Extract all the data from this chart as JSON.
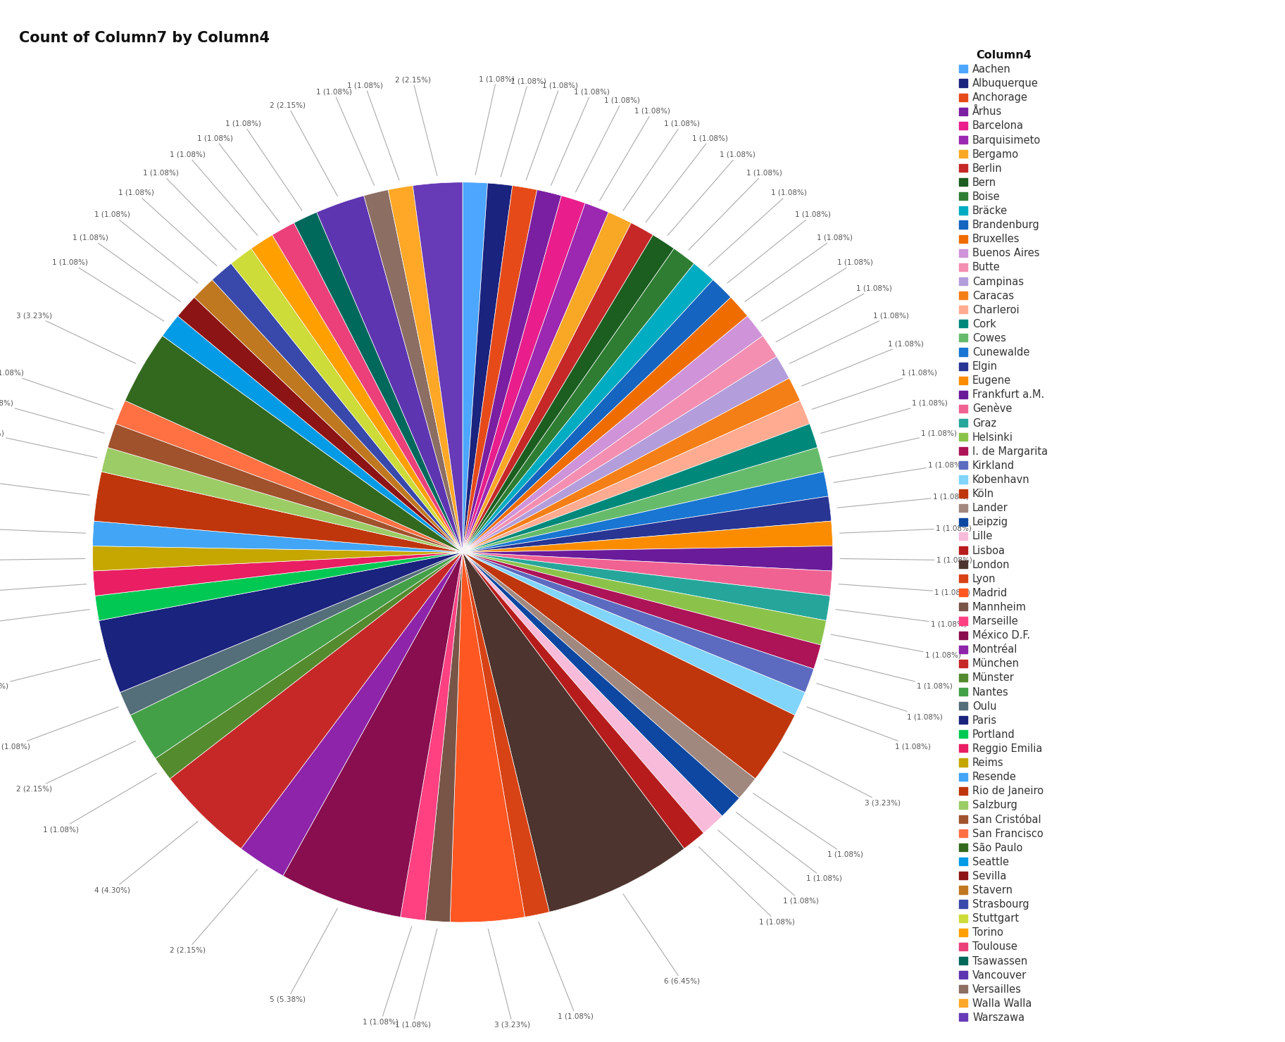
{
  "title": "Count of Column7 by Column4",
  "legend_title": "Column4",
  "categories": [
    "Aachen",
    "Albuquerque",
    "Anchorage",
    "Århus",
    "Barcelona",
    "Barquisimeto",
    "Bergamo",
    "Berlin",
    "Bern",
    "Boise",
    "Bräcke",
    "Brandenburg",
    "Bruxelles",
    "Buenos Aires",
    "Butte",
    "Campinas",
    "Caracas",
    "Charleroi",
    "Cork",
    "Cowes",
    "Cunewalde",
    "Elgin",
    "Eugene",
    "Frankfurt a.M.",
    "Genève",
    "Graz",
    "Helsinki",
    "I. de Margarita",
    "Kirkland",
    "Kobenhavn",
    "Köln",
    "Lander",
    "Leipzig",
    "Lille",
    "Lisboa",
    "London",
    "Lyon",
    "Madrid",
    "Mannheim",
    "Marseille",
    "México D.F.",
    "Montréal",
    "München",
    "Münster",
    "Nantes",
    "Oulu",
    "Paris",
    "Portland",
    "Reggio Emilia",
    "Reims",
    "Resende",
    "Rio de Janeiro",
    "Salzburg",
    "San Cristóbal",
    "San Francisco",
    "São Paulo",
    "Seattle",
    "Sevilla",
    "Stavern",
    "Strasbourg",
    "Stuttgart",
    "Torino",
    "Toulouse",
    "Tsawassen",
    "Vancouver",
    "Versailles",
    "Walla Walla",
    "Warszawa"
  ],
  "values": [
    1,
    1,
    1,
    1,
    1,
    1,
    1,
    1,
    1,
    1,
    1,
    1,
    1,
    1,
    1,
    1,
    1,
    1,
    1,
    1,
    1,
    1,
    1,
    1,
    1,
    1,
    1,
    1,
    1,
    1,
    3,
    1,
    1,
    1,
    1,
    6,
    1,
    3,
    1,
    1,
    5,
    2,
    4,
    1,
    2,
    1,
    3,
    1,
    1,
    1,
    1,
    2,
    1,
    1,
    1,
    3,
    1,
    1,
    1,
    1,
    1,
    1,
    1,
    1,
    2,
    1,
    1,
    2
  ],
  "colors": [
    "#4DA6FF",
    "#1A237E",
    "#E64A19",
    "#7B1FA2",
    "#E91E8C",
    "#9C27B0",
    "#F9A825",
    "#C62828",
    "#1B5E20",
    "#2E7D32",
    "#00ACC1",
    "#1565C0",
    "#EF6C00",
    "#CE93D8",
    "#F48FB1",
    "#B39DDB",
    "#F57F17",
    "#FFAB91",
    "#00897B",
    "#66BB6A",
    "#1976D2",
    "#283593",
    "#FB8C00",
    "#6A1B9A",
    "#F06292",
    "#26A69A",
    "#8BC34A",
    "#AD1457",
    "#5C6BC0",
    "#81D4FA",
    "#BF360C",
    "#A1887F",
    "#0D47A1",
    "#F8BBD9",
    "#B71C1C",
    "#4E342E",
    "#D84315",
    "#FF5722",
    "#795548",
    "#FF4081",
    "#880E4F",
    "#8E24AA",
    "#C62828",
    "#558B2F",
    "#43A047",
    "#546E7A",
    "#1A237E",
    "#00C853",
    "#E91E63",
    "#C6A600",
    "#42A5F5",
    "#BF360C",
    "#9CCC65",
    "#A0522D",
    "#FF7043",
    "#33691E",
    "#039BE5",
    "#8D1414",
    "#C07820",
    "#3949AB",
    "#CDDC39",
    "#FFA000",
    "#EC407A",
    "#00695C",
    "#5E35B1",
    "#8D6E63",
    "#FFA726",
    "#673AB7"
  ],
  "background_color": "#FFFFFF",
  "title_fontsize": 15,
  "label_fontsize": 8.5,
  "legend_fontsize": 10.5
}
